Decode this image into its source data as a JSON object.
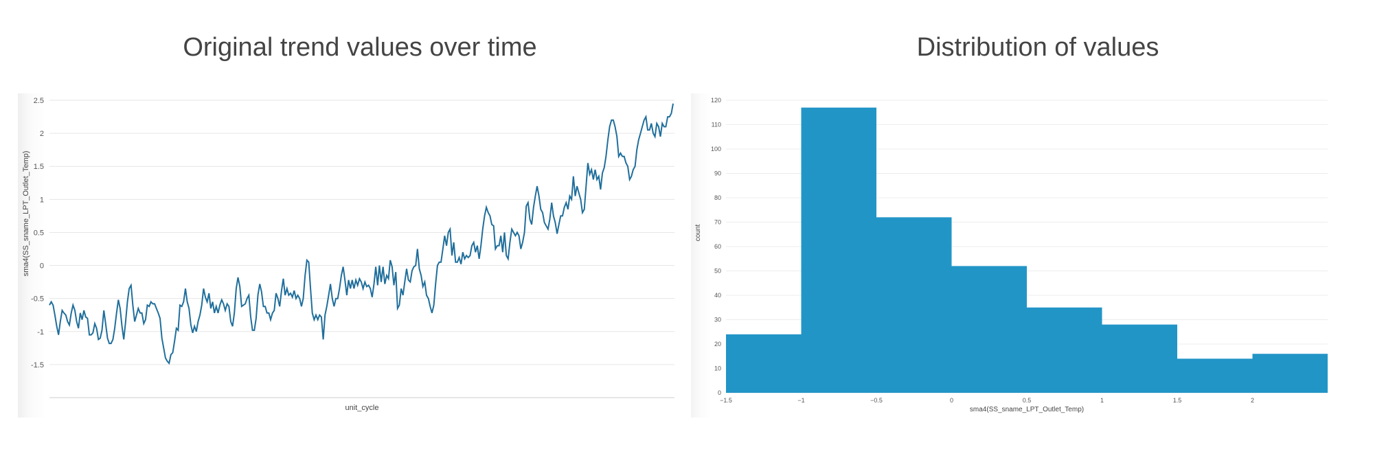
{
  "charts": {
    "left_title": "Original trend values over time",
    "right_title": "Distribution of values"
  },
  "colors": {
    "line": "#1f6e9b",
    "bar": "#2295c7",
    "grid": "#e6e6e6",
    "axis_text": "#555555"
  },
  "chart_data": [
    {
      "type": "line",
      "title": "Original trend values over time",
      "xlabel": "unit_cycle",
      "ylabel": "sma4(SS_sname_LPT_Outlet_Temp)",
      "ylim": [
        -2,
        2.5
      ],
      "yticks": [
        "2.5",
        "2",
        "1.5",
        "1",
        "0.5",
        "0",
        "-0.5",
        "-1",
        "-1.5"
      ],
      "ytick_values": [
        2.5,
        2,
        1.5,
        1,
        0.5,
        0,
        -0.5,
        -1,
        -1.5
      ],
      "grid": true,
      "series": [
        {
          "y": [
            -0.6,
            -0.55,
            -0.6,
            -0.75,
            -0.92,
            -1.05,
            -0.85,
            -0.68,
            -0.72,
            -0.75,
            -0.85,
            -0.9,
            -0.72,
            -0.6,
            -0.68,
            -0.85,
            -0.95,
            -0.72,
            -0.82,
            -0.68,
            -0.78,
            -0.8,
            -1.05,
            -1.05,
            -1.02,
            -0.88,
            -0.95,
            -1.12,
            -1.1,
            -0.98,
            -0.68,
            -0.88,
            -1.1,
            -1.18,
            -1.18,
            -1.12,
            -0.95,
            -0.72,
            -0.52,
            -0.65,
            -0.92,
            -1.12,
            -0.85,
            -0.55,
            -0.35,
            -0.3,
            -0.6,
            -0.85,
            -0.75,
            -0.65,
            -0.72,
            -0.72,
            -0.88,
            -0.82,
            -0.6,
            -0.62,
            -0.55,
            -0.58,
            -0.58,
            -0.65,
            -0.72,
            -0.8,
            -1.1,
            -1.25,
            -1.4,
            -1.45,
            -1.48,
            -1.35,
            -1.32,
            -1.15,
            -0.95,
            -0.98,
            -0.6,
            -0.62,
            -0.55,
            -0.35,
            -0.55,
            -0.65,
            -0.9,
            -1.02,
            -0.92,
            -1.0,
            -0.85,
            -0.75,
            -0.6,
            -0.35,
            -0.48,
            -0.55,
            -0.42,
            -0.65,
            -0.55,
            -0.72,
            -0.62,
            -0.72,
            -0.6,
            -0.52,
            -0.58,
            -0.68,
            -0.58,
            -0.62,
            -0.85,
            -0.92,
            -0.72,
            -0.35,
            -0.18,
            -0.32,
            -0.62,
            -0.6,
            -0.58,
            -0.5,
            -0.45,
            -0.78,
            -0.98,
            -0.98,
            -0.8,
            -0.45,
            -0.28,
            -0.4,
            -0.62,
            -0.62,
            -0.72,
            -0.72,
            -0.82,
            -0.72,
            -0.68,
            -0.42,
            -0.5,
            -0.62,
            -0.38,
            -0.2,
            -0.45,
            -0.35,
            -0.45,
            -0.42,
            -0.48,
            -0.38,
            -0.5,
            -0.45,
            -0.5,
            -0.62,
            -0.5,
            -0.15,
            0.08,
            0.05,
            -0.35,
            -0.72,
            -0.82,
            -0.75,
            -0.82,
            -0.75,
            -0.78,
            -1.12,
            -0.75,
            -0.62,
            -0.45,
            -0.28,
            -0.5,
            -0.62,
            -0.5,
            -0.5,
            -0.35,
            -0.15,
            -0.02,
            -0.22,
            -0.45,
            -0.22,
            -0.35,
            -0.22,
            -0.35,
            -0.22,
            -0.3,
            -0.2,
            -0.25,
            -0.35,
            -0.25,
            -0.32,
            -0.3,
            -0.35,
            -0.48,
            -0.28,
            -0.02,
            -0.3,
            0.0,
            -0.25,
            -0.02,
            -0.28,
            -0.15,
            -0.2,
            0.08,
            -0.02,
            -0.3,
            -0.1,
            -0.65,
            -0.6,
            -0.35,
            -0.45,
            -0.25,
            -0.05,
            -0.22,
            -0.25,
            -0.08,
            -0.02,
            0.0,
            0.25,
            -0.05,
            -0.15,
            -0.32,
            -0.25,
            -0.45,
            -0.5,
            -0.62,
            -0.72,
            -0.6,
            -0.28,
            0.0,
            0.05,
            0.05,
            0.25,
            0.45,
            0.3,
            0.5,
            0.55,
            0.15,
            0.35,
            0.05,
            0.05,
            0.12,
            0.02,
            0.2,
            0.1,
            0.15,
            0.12,
            0.15,
            0.3,
            0.35,
            0.2,
            0.3,
            0.1,
            0.3,
            0.55,
            0.75,
            0.88,
            0.8,
            0.75,
            0.62,
            0.6,
            0.25,
            0.3,
            0.3,
            0.45,
            0.2,
            0.5,
            0.15,
            0.1,
            0.35,
            0.55,
            0.5,
            0.45,
            0.5,
            0.45,
            0.25,
            0.35,
            0.5,
            0.9,
            0.95,
            0.7,
            0.62,
            0.88,
            1.05,
            1.2,
            1.05,
            0.85,
            0.8,
            0.65,
            0.6,
            0.55,
            0.7,
            0.95,
            0.75,
            0.65,
            0.48,
            0.62,
            0.75,
            0.75,
            0.88,
            0.95,
            0.85,
            1.05,
            1.0,
            1.35,
            1.05,
            1.2,
            1.1,
            1.0,
            0.8,
            0.85,
            1.2,
            1.55,
            1.38,
            1.45,
            1.3,
            1.45,
            1.3,
            1.35,
            1.15,
            1.4,
            1.48,
            1.65,
            1.9,
            2.1,
            2.2,
            2.2,
            2.1,
            1.95,
            1.65,
            1.7,
            1.65,
            1.65,
            1.55,
            1.5,
            1.3,
            1.35,
            1.45,
            1.5,
            1.75,
            1.9,
            2.0,
            2.1,
            2.2,
            2.25,
            2.05,
            2.05,
            2.15,
            2.0,
            1.95,
            2.15,
            2.1,
            1.95,
            2.15,
            2.1,
            2.1,
            2.25,
            2.25,
            2.3,
            2.45
          ]
        }
      ]
    },
    {
      "type": "bar",
      "title": "Distribution of values",
      "xlabel": "sma4(SS_sname_LPT_Outlet_Temp)",
      "ylabel": "count",
      "bin_edges": [
        -1.5,
        -1,
        -0.5,
        0,
        0.5,
        1,
        1.5,
        2,
        2.5
      ],
      "values": [
        24,
        117,
        72,
        52,
        35,
        28,
        14,
        16
      ],
      "ylim": [
        0,
        120
      ],
      "yticks": [
        "0",
        "10",
        "20",
        "30",
        "40",
        "50",
        "60",
        "70",
        "80",
        "90",
        "100",
        "110",
        "120"
      ],
      "ytick_values": [
        0,
        10,
        20,
        30,
        40,
        50,
        60,
        70,
        80,
        90,
        100,
        110,
        120
      ],
      "xticks": [
        "−1.5",
        "−1",
        "−0.5",
        "0",
        "0.5",
        "1",
        "1.5",
        "2"
      ],
      "xtick_values": [
        -1.5,
        -1,
        -0.5,
        0,
        0.5,
        1,
        1.5,
        2
      ],
      "grid": true
    }
  ]
}
